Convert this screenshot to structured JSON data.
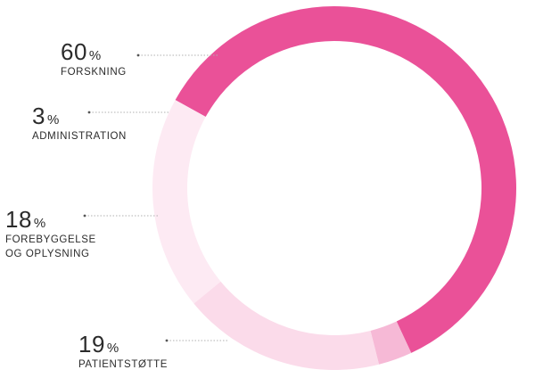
{
  "chart_data": {
    "type": "donut",
    "slices": [
      {
        "value": 60,
        "unit": "%",
        "name": "FORSKNING",
        "color": "#ea5198"
      },
      {
        "value": 3,
        "unit": "%",
        "name": "ADMINISTRATION",
        "color": "#f6b9d6"
      },
      {
        "value": 18,
        "unit": "%",
        "name": "FOREBYGGELSE OG OPLYSNING",
        "color": "#fbdbea"
      },
      {
        "value": 19,
        "unit": "%",
        "name": "PATIENTSTØTTE",
        "color": "#fdeaf3"
      }
    ]
  },
  "labels": [
    {
      "value": "60",
      "unit": "%",
      "lines": [
        "FORSKNING"
      ]
    },
    {
      "value": "3",
      "unit": "%",
      "lines": [
        "ADMINISTRATION"
      ]
    },
    {
      "value": "18",
      "unit": "%",
      "lines": [
        "FOREBYGGELSE",
        "OG OPLYSNING"
      ]
    },
    {
      "value": "19",
      "unit": "%",
      "lines": [
        "PATIENTSTØTTE"
      ]
    }
  ],
  "colors": {
    "leader_line": "#b0b0b0",
    "leader_dot": "#555555"
  }
}
